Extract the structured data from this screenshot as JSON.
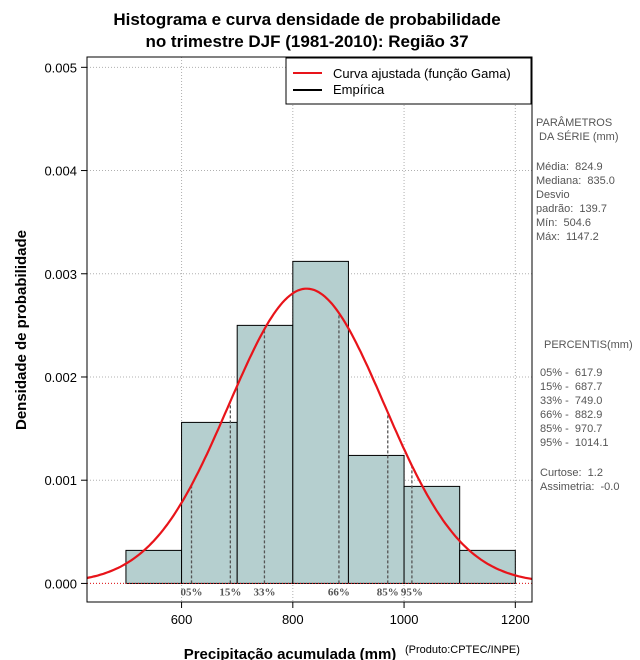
{
  "chart_data": {
    "type": "bar",
    "title_lines": [
      "Histograma e curva densidade de probabilidade",
      "no trimestre DJF (1981-2010): Região 37"
    ],
    "xlabel": "Precipitação acumulada (mm)",
    "ylabel": "Densidade de probabilidade",
    "credit": "(Produto:CPTEC/INPE)",
    "xlim": [
      430,
      1230
    ],
    "ylim": [
      -0.00018,
      0.0051
    ],
    "x_ticks": [
      600,
      800,
      1000,
      1200
    ],
    "y_ticks": [
      0.0,
      0.001,
      0.002,
      0.003,
      0.004,
      0.005
    ],
    "y_tick_labels": [
      "0.000",
      "0.001",
      "0.002",
      "0.003",
      "0.004",
      "0.005"
    ],
    "grid": true,
    "bins": [
      {
        "x0": 500,
        "x1": 600,
        "value": 0.00032
      },
      {
        "x0": 600,
        "x1": 700,
        "value": 0.00156
      },
      {
        "x0": 700,
        "x1": 800,
        "value": 0.0025
      },
      {
        "x0": 800,
        "x1": 900,
        "value": 0.00312
      },
      {
        "x0": 900,
        "x1": 1000,
        "value": 0.00124
      },
      {
        "x0": 1000,
        "x1": 1100,
        "value": 0.00094
      },
      {
        "x0": 1100,
        "x1": 1200,
        "value": 0.00032
      }
    ],
    "curve": {
      "name": "Curva ajustada (função Gama)",
      "color": "#e8141a",
      "mean": 824.9,
      "sd": 139.7
    },
    "legend": [
      {
        "label": "Curva ajustada (função Gama)",
        "color": "#e8141a"
      },
      {
        "label": "Empírica",
        "color": "#000000"
      }
    ],
    "legend_position": "top-right",
    "bar_color": "#b5cfcf",
    "percentiles": [
      {
        "label": "05%",
        "value": 617.9
      },
      {
        "label": "15%",
        "value": 687.7
      },
      {
        "label": "33%",
        "value": 749.0
      },
      {
        "label": "66%",
        "value": 882.9
      },
      {
        "label": "85%",
        "value": 970.7
      },
      {
        "label": "95%",
        "value": 1014.1
      }
    ]
  },
  "stats_panel": {
    "header": "PARÂMETROS\n DA SÉRIE (mm)",
    "body": "Média:  824.9\nMediana:  835.0\nDesvio\npadrão:  139.7\nMín:  504.6\nMáx:  1147.2"
  },
  "percentis_panel": {
    "header": "PERCENTIS(mm)",
    "body": "05% -  617.9\n15% -  687.7\n33% -  749.0\n66% -  882.9\n85% -  970.7\n95% -  1014.1",
    "extra": "Curtose:  1.2\nAssimetria:  -0.0"
  }
}
